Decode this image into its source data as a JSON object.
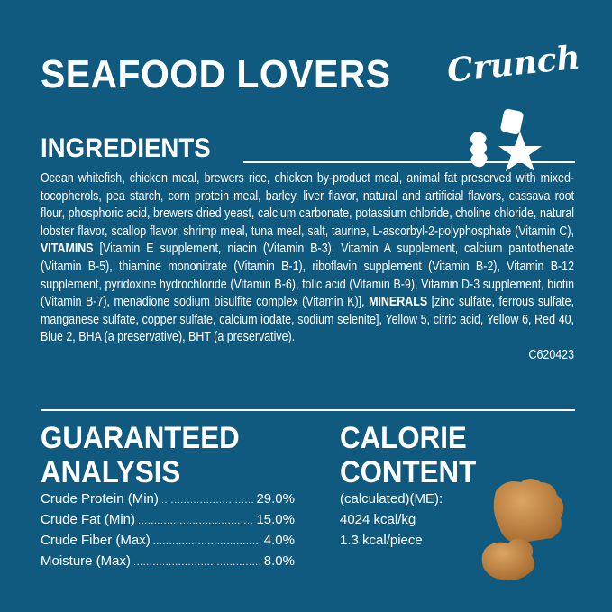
{
  "header": {
    "title": "SEAFOOD LOVERS",
    "subtitle": "Crunch"
  },
  "ingredients": {
    "heading": "INGREDIENTS",
    "part1": "Ocean whitefish, chicken meal, brewers rice, chicken by-product meal, animal fat preserved with mixed-tocopherols, pea starch, corn protein meal, barley, liver flavor, natural and artificial flavors, cassava root flour, phosphoric acid, brewers dried yeast, calcium carbonate, potassium chloride, choline chloride, natural lobster flavor, scallop flavor, shrimp meal, tuna meal, salt, taurine, L-ascorbyl-2-polyphosphate (Vitamin C), ",
    "vitamins_label": "VITAMINS",
    "part2": " [Vitamin E supplement, niacin (Vitamin B-3), Vitamin A supplement, calcium pantothenate (Vitamin B-5), thiamine mononitrate (Vitamin B-1), riboflavin supplement (Vitamin B-2), Vitamin B-12 supplement, pyridoxine hydrochloride (Vitamin B-6), folic acid (Vitamin B-9), Vitamin D-3 supplement, biotin (Vitamin B-7), menadione sodium bisulfite complex (Vitamin K)], ",
    "minerals_label": "MINERALS",
    "part3": " [zinc sulfate, ferrous sulfate, manganese sulfate, copper sulfate, calcium iodate, sodium selenite], Yellow 5, citric acid, Yellow 6, Red 40, Blue 2, BHA (a preservative), BHT (a preservative).",
    "code": "C620423"
  },
  "analysis": {
    "heading_line1": "GUARANTEED",
    "heading_line2": "ANALYSIS",
    "rows": [
      {
        "label": "Crude Protein (Min)",
        "value": "29.0%"
      },
      {
        "label": "Crude Fat (Min)",
        "value": "15.0%"
      },
      {
        "label": "Crude Fiber (Max)",
        "value": "4.0%"
      },
      {
        "label": "Moisture (Max)",
        "value": "8.0%"
      }
    ]
  },
  "calories": {
    "heading_line1": "CALORIE",
    "heading_line2": "CONTENT",
    "line1": "(calculated)(ME):",
    "line2": "4024 kcal/kg",
    "line3": "1.3 kcal/piece"
  },
  "colors": {
    "background": "#105a80",
    "text": "#ffffff",
    "kibble": "#c98a45"
  }
}
